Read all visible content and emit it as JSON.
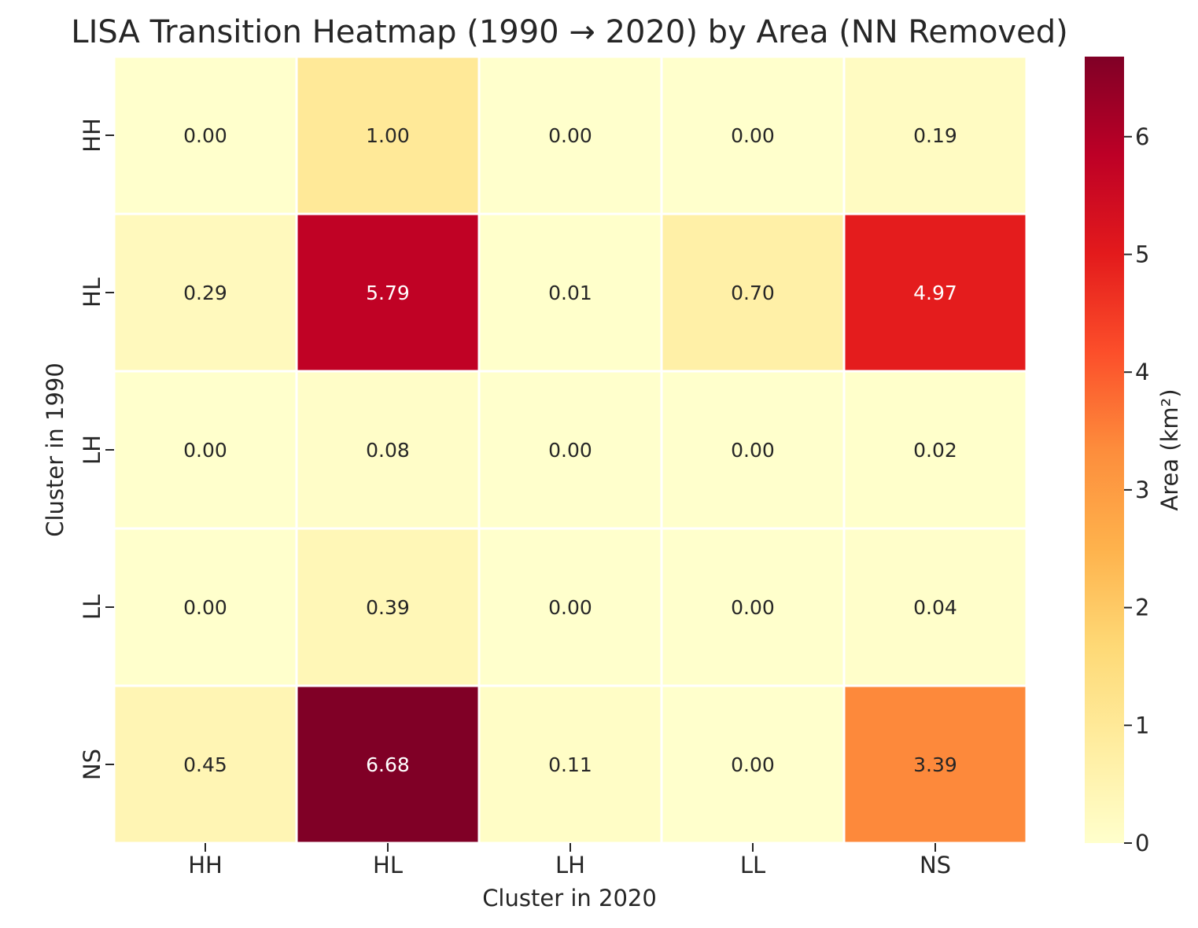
{
  "chart_data": {
    "type": "heatmap",
    "title": "LISA Transition Heatmap (1990 → 2020) by Area (NN Removed)",
    "xlabel": "Cluster in 2020",
    "ylabel": "Cluster in 1990",
    "x_categories": [
      "HH",
      "HL",
      "LH",
      "LL",
      "NS"
    ],
    "y_categories": [
      "HH",
      "HL",
      "LH",
      "LL",
      "NS"
    ],
    "values": [
      [
        0.0,
        1.0,
        0.0,
        0.0,
        0.19
      ],
      [
        0.29,
        5.79,
        0.01,
        0.7,
        4.97
      ],
      [
        0.0,
        0.08,
        0.0,
        0.0,
        0.02
      ],
      [
        0.0,
        0.39,
        0.0,
        0.0,
        0.04
      ],
      [
        0.45,
        6.68,
        0.11,
        0.0,
        3.39
      ]
    ],
    "annotation_format": "0.00",
    "colorbar": {
      "label": "Area (km²)",
      "colormap": "YlOrRd",
      "vmin": 0,
      "vmax": 6.68,
      "ticks": [
        0,
        1,
        2,
        3,
        4,
        5,
        6
      ]
    },
    "grid": false
  }
}
